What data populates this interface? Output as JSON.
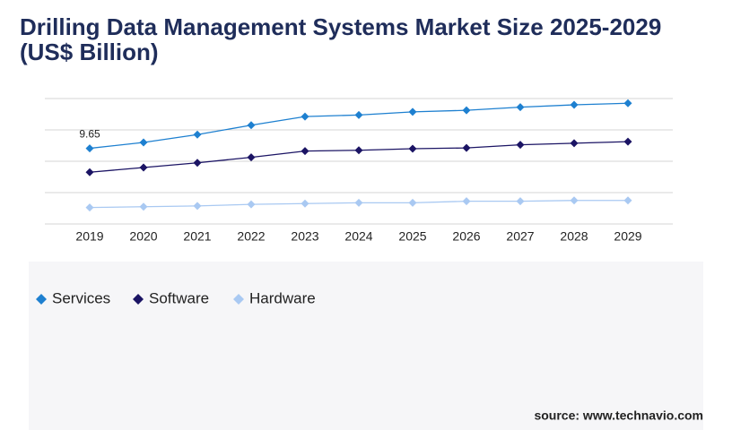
{
  "chart_data": {
    "type": "line",
    "title": "Drilling Data Management Systems Market Size 2025-2029 (US$ Billion)",
    "categories": [
      "2019",
      "2020",
      "2021",
      "2022",
      "2023",
      "2024",
      "2025",
      "2026",
      "2027",
      "2028",
      "2029"
    ],
    "series": [
      {
        "name": "Services",
        "color": "#1e80d0",
        "values": [
          9.65,
          10.4,
          11.4,
          12.6,
          13.7,
          13.9,
          14.3,
          14.5,
          14.9,
          15.2,
          15.4
        ]
      },
      {
        "name": "Software",
        "color": "#1b1464",
        "values": [
          6.6,
          7.2,
          7.8,
          8.5,
          9.3,
          9.4,
          9.6,
          9.7,
          10.1,
          10.3,
          10.5
        ]
      },
      {
        "name": "Hardware",
        "color": "#a9c9f2",
        "values": [
          2.1,
          2.2,
          2.3,
          2.5,
          2.6,
          2.7,
          2.7,
          2.9,
          2.9,
          3.0,
          3.0
        ]
      }
    ],
    "ylim": [
      0,
      16
    ],
    "yticks": [
      0,
      4,
      8,
      12,
      16
    ],
    "grid": true,
    "source": "source: www.technavio.com"
  }
}
